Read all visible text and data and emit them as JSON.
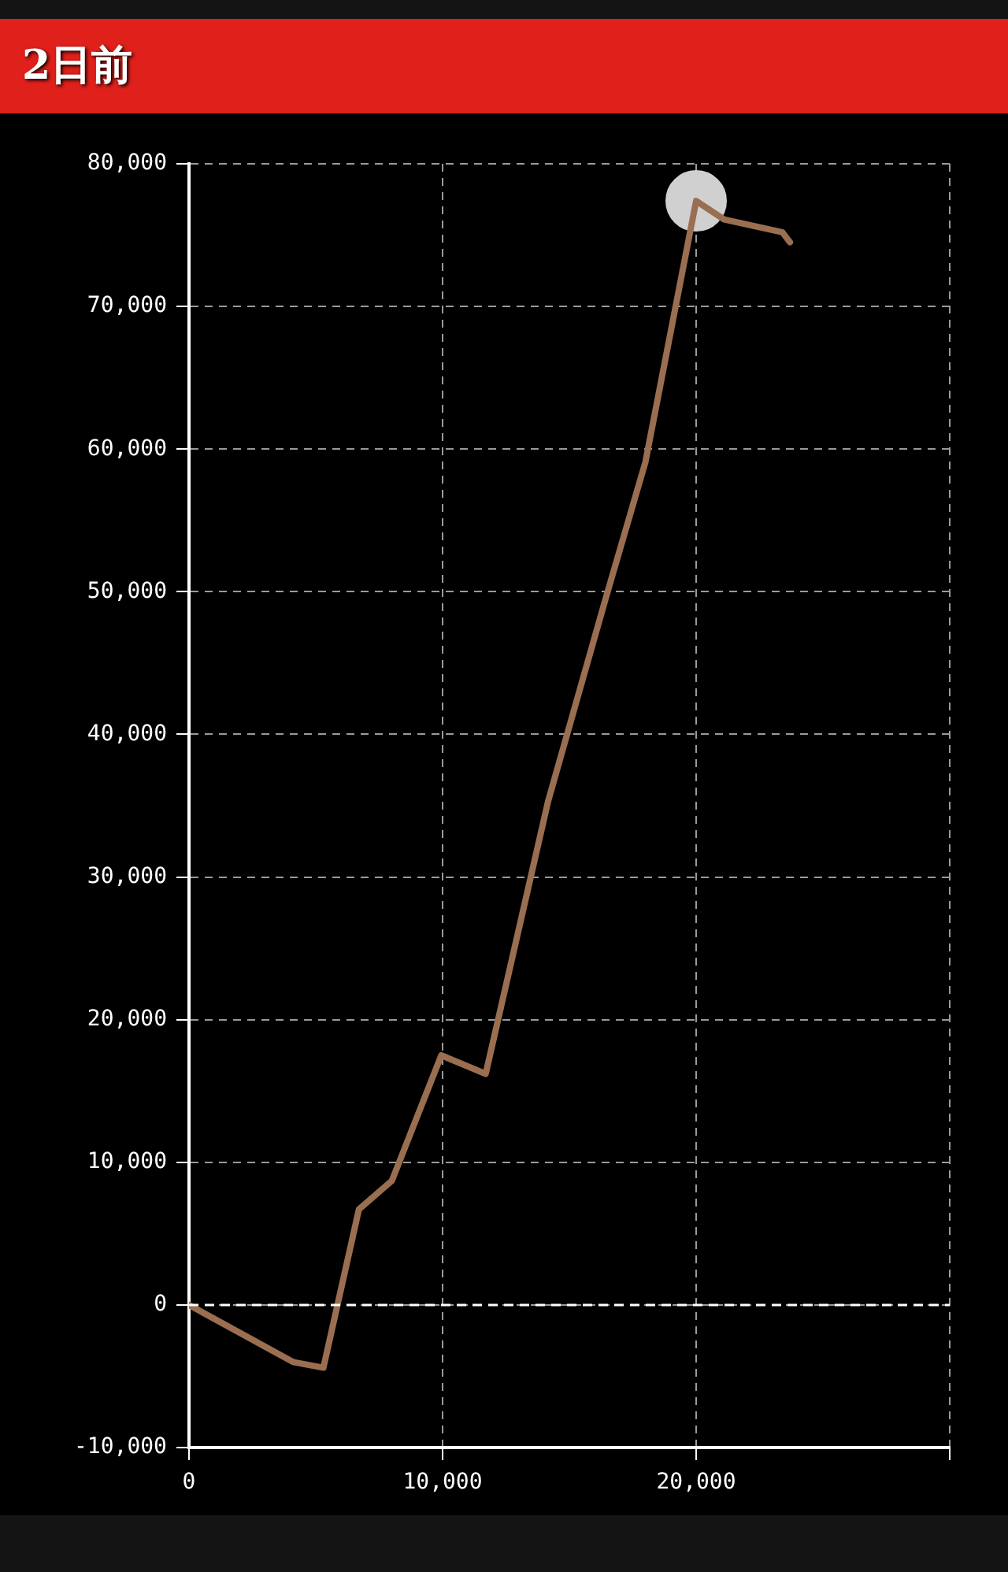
{
  "chart_data": {
    "type": "line",
    "title": "2日前",
    "series": [
      {
        "color": "#9a6e50",
        "x": [
          0,
          4100,
          5300,
          6700,
          8000,
          9950,
          11700,
          14160,
          16460,
          18000,
          20000,
          21100,
          23400,
          23700
        ],
        "values": [
          0,
          -4000,
          -4400,
          6700,
          8700,
          17500,
          16200,
          35300,
          49700,
          59100,
          77400,
          76100,
          75200,
          74500
        ]
      },
      {
        "type": "scatter",
        "color": "#d0d0d0",
        "marker": "circle",
        "x": [
          20000
        ],
        "values": [
          77400
        ]
      }
    ],
    "xlim": [
      0,
      30000
    ],
    "xticks": [
      0,
      {
        "value": 10000,
        "label": "10,000"
      },
      {
        "value": 20000,
        "label": "20,000"
      },
      {
        "value": 30000,
        "label": null
      }
    ],
    "ylim": [
      -10000,
      80000
    ],
    "yticks": [
      {
        "value": -10000,
        "label": "-10,000"
      },
      0,
      {
        "value": 10000,
        "label": "10,000"
      },
      {
        "value": 20000,
        "label": "20,000"
      },
      {
        "value": 30000,
        "label": "30,000"
      },
      {
        "value": 40000,
        "label": "40,000"
      },
      {
        "value": 50000,
        "label": "50,000"
      },
      {
        "value": 60000,
        "label": "60,000"
      },
      {
        "value": 70000,
        "label": "70,000"
      },
      {
        "value": 80000,
        "label": "80,000"
      }
    ],
    "grid": true,
    "legend": false,
    "line_style": "solid",
    "ref_lines": [
      {
        "axis": "y",
        "value": 0,
        "color": "#ffffff",
        "line_style": "dashed"
      }
    ]
  }
}
